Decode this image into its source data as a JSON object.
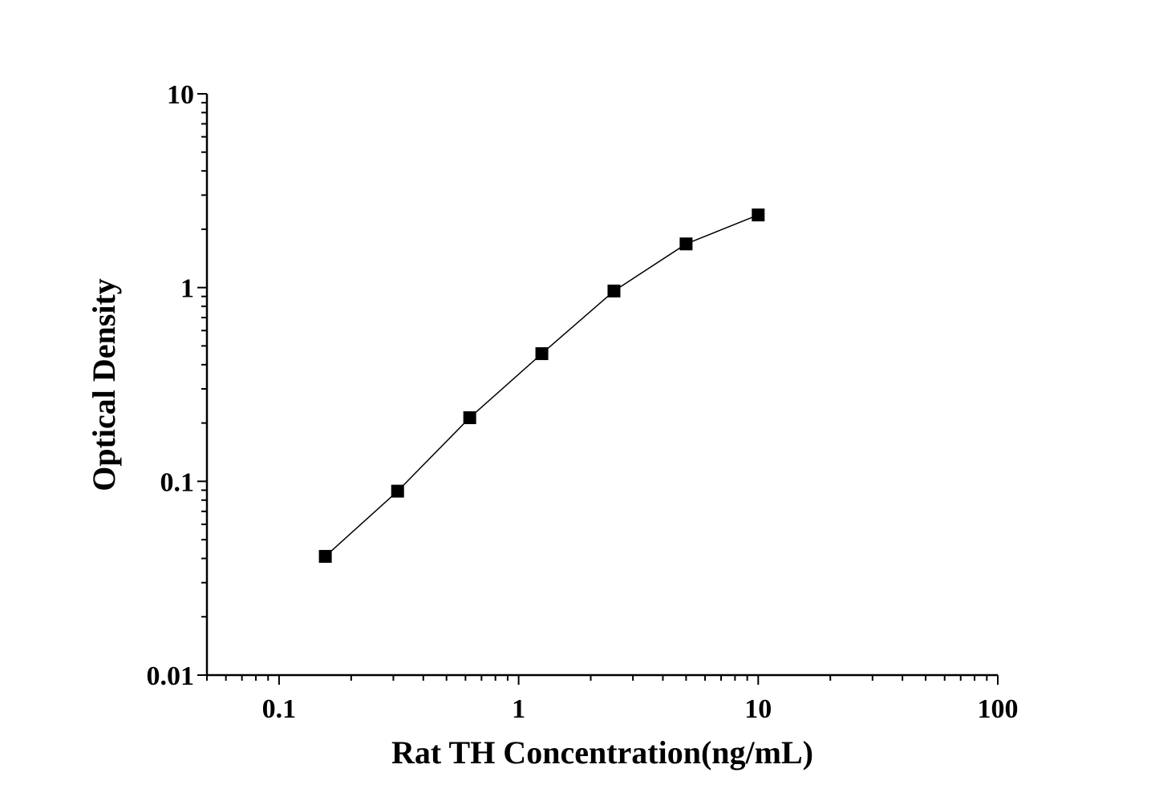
{
  "chart_data": {
    "type": "line",
    "title": "",
    "xlabel": "Rat TH Concentration(ng/mL)",
    "ylabel": "Optical Density",
    "x_scale": "log",
    "y_scale": "log",
    "xlim": [
      0.05,
      100
    ],
    "ylim": [
      0.01,
      10
    ],
    "x_ticks": [
      {
        "value": 0.1,
        "label": "0.1"
      },
      {
        "value": 1,
        "label": "1"
      },
      {
        "value": 10,
        "label": "10"
      },
      {
        "value": 100,
        "label": "100"
      }
    ],
    "y_ticks": [
      {
        "value": 0.01,
        "label": "0.01"
      },
      {
        "value": 0.1,
        "label": "0.1"
      },
      {
        "value": 1,
        "label": "1"
      },
      {
        "value": 10,
        "label": "10"
      }
    ],
    "grid": false,
    "marker": "square",
    "color": "#000000",
    "series": [
      {
        "x": [
          0.156,
          0.3125,
          0.625,
          1.25,
          2.5,
          5,
          10
        ],
        "y": [
          0.041,
          0.089,
          0.213,
          0.456,
          0.96,
          1.68,
          2.37
        ]
      }
    ]
  }
}
